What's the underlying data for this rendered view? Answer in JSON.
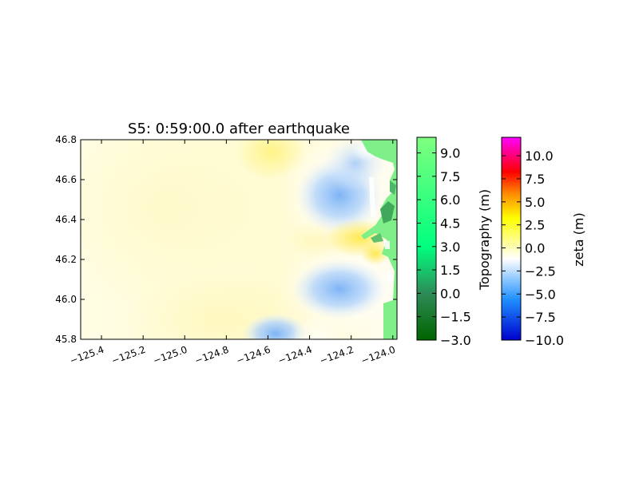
{
  "chart_data": {
    "type": "heatmap",
    "title": "S5: 0:59:00.0 after earthquake",
    "xlabel": "",
    "ylabel": "",
    "xlim": [
      -125.5,
      -123.98
    ],
    "ylim": [
      45.8,
      46.8
    ],
    "x_ticks": [
      -125.4,
      -125.2,
      -125.0,
      -124.8,
      -124.6,
      -124.4,
      -124.2,
      -124.0
    ],
    "x_tick_labels": [
      "−125.4",
      "−125.2",
      "−125.0",
      "−124.8",
      "−124.6",
      "−124.4",
      "−124.2",
      "−124.0"
    ],
    "y_ticks": [
      45.8,
      46.0,
      46.2,
      46.4,
      46.6,
      46.8
    ],
    "y_tick_labels": [
      "45.8",
      "46.0",
      "46.2",
      "46.4",
      "46.6",
      "46.8"
    ],
    "colorbars": [
      {
        "name": "topography",
        "label": "Topography (m)",
        "range": [
          -3.0,
          10.0
        ],
        "ticks": [
          -3.0,
          -1.5,
          0.0,
          1.5,
          3.0,
          4.5,
          6.0,
          7.5,
          9.0
        ],
        "tick_labels": [
          "−3.0",
          "−1.5",
          "0.0",
          "1.5",
          "3.0",
          "4.5",
          "6.0",
          "7.5",
          "9.0"
        ],
        "colors": [
          "#006400",
          "#2e8b57",
          "#00ff7f",
          "#7fff7f"
        ]
      },
      {
        "name": "zeta",
        "label": "zeta (m)",
        "range": [
          -10.0,
          12.0
        ],
        "ticks": [
          -10.0,
          -7.5,
          -5.0,
          -2.5,
          0.0,
          2.5,
          5.0,
          7.5,
          10.0
        ],
        "tick_labels": [
          "−10.0",
          "−7.5",
          "−5.0",
          "−2.5",
          "0.0",
          "2.5",
          "5.0",
          "7.5",
          "10.0"
        ],
        "colors": [
          "#0000cd",
          "#1e90ff",
          "#ffffff",
          "#ffff00",
          "#ff8c00",
          "#ff0000",
          "#ff00ff"
        ]
      }
    ],
    "features": {
      "background_color": "#fffde2",
      "positive_anomalies": [
        {
          "lon": -124.63,
          "lat": 46.72,
          "value": 1.0
        },
        {
          "lon": -124.16,
          "lat": 46.3,
          "value": 2.0
        },
        {
          "lon": -124.35,
          "lat": 46.3,
          "value": 1.0
        },
        {
          "lon": -124.8,
          "lat": 45.95,
          "value": 0.6
        }
      ],
      "negative_anomalies": [
        {
          "lon": -124.28,
          "lat": 46.55,
          "value": -3.0
        },
        {
          "lon": -124.28,
          "lat": 46.05,
          "value": -3.0
        },
        {
          "lon": -124.52,
          "lat": 45.86,
          "value": -2.0
        }
      ],
      "land_color": "#7fef8a"
    }
  }
}
